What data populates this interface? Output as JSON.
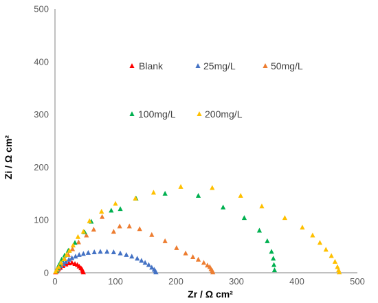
{
  "chart_data": {
    "type": "scatter",
    "xlabel": "Zr / Ω cm²",
    "ylabel": "Zi / Ω cm²",
    "xlim": [
      0,
      500
    ],
    "ylim": [
      0,
      500
    ],
    "xticks": [
      "0",
      "100",
      "200",
      "300",
      "400",
      "500"
    ],
    "yticks": [
      "0",
      "100",
      "200",
      "300",
      "400",
      "500"
    ],
    "grid": false,
    "legend": "inside-top",
    "marker": "triangle",
    "series": [
      {
        "name": "Blank",
        "color": "#ff0000",
        "points": [
          [
            1,
            1
          ],
          [
            3,
            4
          ],
          [
            6,
            7
          ],
          [
            9,
            10
          ],
          [
            13,
            13
          ],
          [
            18,
            16
          ],
          [
            23,
            18
          ],
          [
            28,
            19
          ],
          [
            33,
            17
          ],
          [
            37,
            15
          ],
          [
            40,
            12
          ],
          [
            43,
            9
          ],
          [
            45,
            6
          ],
          [
            46,
            3
          ],
          [
            47,
            1
          ]
        ]
      },
      {
        "name": "25mg/L",
        "color": "#4472c4",
        "points": [
          [
            2,
            2
          ],
          [
            4,
            5
          ],
          [
            7,
            9
          ],
          [
            10,
            13
          ],
          [
            14,
            17
          ],
          [
            18,
            21
          ],
          [
            23,
            25
          ],
          [
            28,
            28
          ],
          [
            34,
            31
          ],
          [
            40,
            34
          ],
          [
            47,
            36
          ],
          [
            55,
            38
          ],
          [
            65,
            39
          ],
          [
            75,
            40
          ],
          [
            86,
            40
          ],
          [
            97,
            39
          ],
          [
            108,
            37
          ],
          [
            118,
            34
          ],
          [
            127,
            31
          ],
          [
            136,
            27
          ],
          [
            143,
            23
          ],
          [
            149,
            19
          ],
          [
            155,
            15
          ],
          [
            160,
            10
          ],
          [
            164,
            6
          ],
          [
            166,
            3
          ],
          [
            167,
            1
          ]
        ]
      },
      {
        "name": "50mg/L",
        "color": "#ed7d31",
        "points": [
          [
            2,
            3
          ],
          [
            5,
            8
          ],
          [
            10,
            15
          ],
          [
            16,
            26
          ],
          [
            22,
            34
          ],
          [
            29,
            45
          ],
          [
            39,
            58
          ],
          [
            52,
            71
          ],
          [
            64,
            82
          ],
          [
            78,
            106
          ],
          [
            97,
            78
          ],
          [
            107,
            88
          ],
          [
            123,
            88
          ],
          [
            140,
            83
          ],
          [
            160,
            72
          ],
          [
            182,
            60
          ],
          [
            201,
            47
          ],
          [
            216,
            37
          ],
          [
            228,
            30
          ],
          [
            237,
            25
          ],
          [
            246,
            19
          ],
          [
            252,
            14
          ],
          [
            256,
            11
          ],
          [
            258,
            7
          ],
          [
            260,
            4
          ],
          [
            261,
            1
          ]
        ]
      },
      {
        "name": "100mg/L",
        "color": "#00b050",
        "points": [
          [
            2,
            4
          ],
          [
            4,
            9
          ],
          [
            7,
            16
          ],
          [
            11,
            25
          ],
          [
            16,
            33
          ],
          [
            22,
            42
          ],
          [
            33,
            57
          ],
          [
            49,
            77
          ],
          [
            60,
            97
          ],
          [
            93,
            118
          ],
          [
            108,
            121
          ],
          [
            134,
            141
          ],
          [
            182,
            150
          ],
          [
            237,
            146
          ],
          [
            278,
            124
          ],
          [
            313,
            104
          ],
          [
            338,
            80
          ],
          [
            351,
            60
          ],
          [
            358,
            40
          ],
          [
            361,
            27
          ],
          [
            362,
            15
          ],
          [
            363,
            5
          ]
        ]
      },
      {
        "name": "200mg/L",
        "color": "#ffc000",
        "points": [
          [
            1,
            2
          ],
          [
            3,
            6
          ],
          [
            6,
            11
          ],
          [
            10,
            19
          ],
          [
            15,
            26
          ],
          [
            19,
            34
          ],
          [
            24,
            42
          ],
          [
            30,
            52
          ],
          [
            38,
            68
          ],
          [
            47,
            78
          ],
          [
            57,
            98
          ],
          [
            77,
            116
          ],
          [
            100,
            131
          ],
          [
            133,
            141
          ],
          [
            163,
            152
          ],
          [
            208,
            163
          ],
          [
            260,
            161
          ],
          [
            307,
            146
          ],
          [
            342,
            126
          ],
          [
            380,
            104
          ],
          [
            409,
            86
          ],
          [
            426,
            71
          ],
          [
            438,
            57
          ],
          [
            448,
            44
          ],
          [
            457,
            32
          ],
          [
            463,
            21
          ],
          [
            467,
            11
          ],
          [
            469,
            5
          ],
          [
            470,
            1
          ]
        ]
      }
    ]
  }
}
